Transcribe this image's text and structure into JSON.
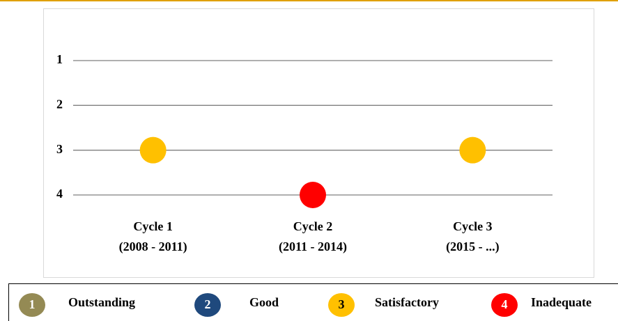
{
  "chart_data": {
    "type": "scatter",
    "categories": [
      "Cycle 1",
      "Cycle 2",
      "Cycle 3"
    ],
    "category_periods": [
      "(2008 - 2011)",
      "(2011 - 2014)",
      "(2015 - ...)"
    ],
    "values": [
      3,
      4,
      3
    ],
    "ylim": [
      1,
      4
    ],
    "y_inverted": true,
    "yticks": [
      1,
      2,
      3,
      4
    ],
    "grid": true,
    "legend": [
      {
        "value": 1,
        "label": "Outstanding",
        "color": "#948a54"
      },
      {
        "value": 2,
        "label": "Good",
        "color": "#1f497d"
      },
      {
        "value": 3,
        "label": "Satisfactory",
        "color": "#ffc000"
      },
      {
        "value": 4,
        "label": "Inadequate",
        "color": "#ff0000"
      }
    ]
  }
}
